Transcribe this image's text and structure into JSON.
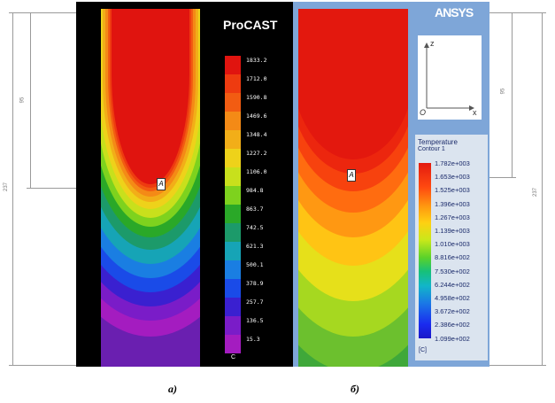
{
  "left_panel": {
    "software_title": "ProCAST",
    "legend_values": [
      "1833.2",
      "1712.0",
      "1590.8",
      "1469.6",
      "1348.4",
      "1227.2",
      "1106.0",
      "984.8",
      "863.7",
      "742.5",
      "621.3",
      "500.1",
      "378.9",
      "257.7",
      "136.5",
      "15.3"
    ],
    "legend_colors": [
      "#e0140f",
      "#ee3b10",
      "#f25c12",
      "#f48a16",
      "#f2ae18",
      "#eed21a",
      "#c8e01c",
      "#7ed21e",
      "#2aa828",
      "#1c9a6a",
      "#16a4b6",
      "#1a7ee2",
      "#1a4be8",
      "#3a20d0",
      "#7a1cc8",
      "#a41cc0"
    ],
    "unit": "C",
    "point_label": "A",
    "caption": "а)"
  },
  "right_panel": {
    "software_logo": "ANSYS",
    "axis_z": "z",
    "axis_x": "x",
    "axis_origin": "O",
    "legend_title": "Temperature",
    "legend_subtitle": "Contour 1",
    "legend_values": [
      "1.782e+003",
      "1.653e+003",
      "1.525e+003",
      "1.396e+003",
      "1.267e+003",
      "1.139e+003",
      "1.010e+003",
      "8.816e+002",
      "7.530e+002",
      "6.244e+002",
      "4.958e+002",
      "3.672e+002",
      "2.386e+002",
      "1.099e+002"
    ],
    "unit": "[C]",
    "point_label": "A",
    "caption": "б)"
  },
  "dimensions": {
    "left_short": "95",
    "left_long": "237",
    "right_short": "95",
    "right_long": "237"
  }
}
